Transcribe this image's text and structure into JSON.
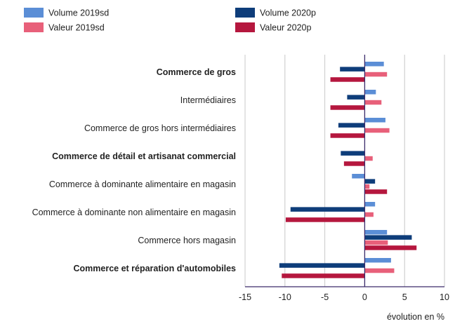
{
  "chart_data": {
    "type": "bar",
    "orientation": "horizontal",
    "categories": [
      "Commerce de gros",
      "Intermédiaires",
      "Commerce de gros hors intermédiaires",
      "Commerce de détail et artisanat commercial",
      "Commerce à dominante alimentaire en magasin",
      "Commerce à dominante non alimentaire en magasin",
      "Commerce hors magasin",
      "Commerce et réparation d'automobiles"
    ],
    "bold_categories": [
      "Commerce de gros",
      "Commerce de détail et artisanat commercial",
      "Commerce et réparation d'automobiles"
    ],
    "series": [
      {
        "name": "Volume 2019sd",
        "color": "#5b8ed6",
        "values": [
          2.4,
          1.4,
          2.6,
          0.0,
          -1.6,
          1.3,
          2.8,
          3.3
        ]
      },
      {
        "name": "Volume 2020p",
        "color": "#0e3d7a",
        "values": [
          -3.1,
          -2.2,
          -3.3,
          -3.0,
          1.3,
          -9.3,
          5.9,
          -10.7
        ]
      },
      {
        "name": "Valeur 2019sd",
        "color": "#e8607a",
        "values": [
          2.8,
          2.1,
          3.1,
          1.0,
          0.6,
          1.1,
          2.9,
          3.7
        ]
      },
      {
        "name": "Valeur 2020p",
        "color": "#b5173e",
        "values": [
          -4.3,
          -4.3,
          -4.3,
          -2.6,
          2.8,
          -9.9,
          6.5,
          -10.4
        ]
      }
    ],
    "xlabel": "évolution en %",
    "xlim": [
      -15,
      10
    ],
    "xticks": [
      -15,
      -10,
      -5,
      0,
      5,
      10
    ],
    "grid": "vertical",
    "legend_position": "top"
  }
}
